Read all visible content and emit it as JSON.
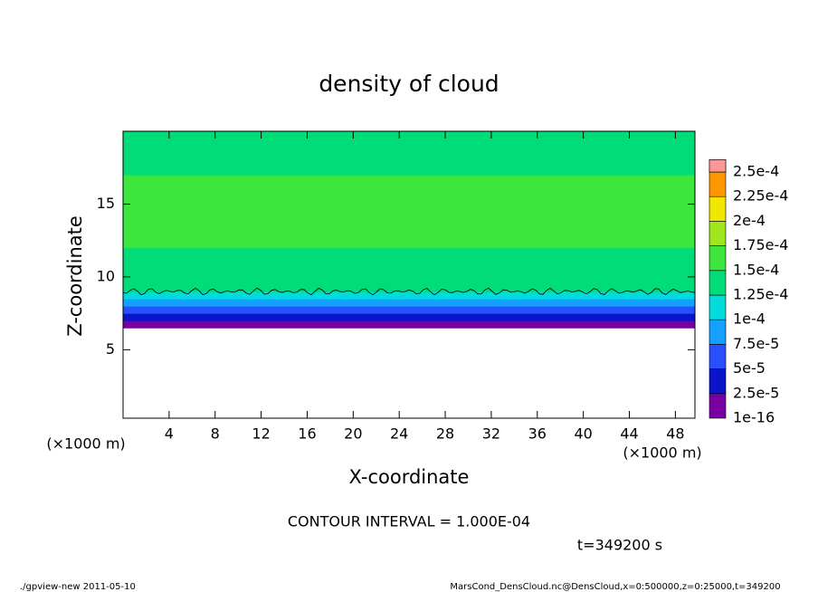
{
  "chart_data": {
    "type": "heatmap",
    "title": "density of cloud",
    "xlabel": "X-coordinate",
    "ylabel": "Z-coordinate",
    "xunit": "(×1000 m)",
    "yunit": "(×1000 m)",
    "xlim": [
      0,
      49.7
    ],
    "ylim": [
      0.3,
      20
    ],
    "xticks": [
      4,
      8,
      12,
      16,
      20,
      24,
      28,
      32,
      36,
      40,
      44,
      48
    ],
    "yticks": [
      5,
      10,
      15
    ],
    "z": [
      6.5,
      7.0,
      7.5,
      8.0,
      8.5,
      9.0,
      10.0,
      12.0,
      17.0,
      19.0
    ],
    "values": [
      1e-16,
      3e-05,
      6e-05,
      8.5e-05,
      0.00011,
      0.00013,
      0.00014,
      0.000155,
      0.000145,
      0.000135
    ],
    "contour_z": 9.0,
    "colorbar": {
      "ticks": [
        {
          "value": 1e-16,
          "label": "1e-16"
        },
        {
          "value": 2.5e-05,
          "label": "2.5e-5"
        },
        {
          "value": 5e-05,
          "label": "5e-5"
        },
        {
          "value": 7.5e-05,
          "label": "7.5e-5"
        },
        {
          "value": 0.0001,
          "label": "1e-4"
        },
        {
          "value": 0.000125,
          "label": "1.25e-4"
        },
        {
          "value": 0.00015,
          "label": "1.5e-4"
        },
        {
          "value": 0.000175,
          "label": "1.75e-4"
        },
        {
          "value": 0.0002,
          "label": "2e-4"
        },
        {
          "value": 0.000225,
          "label": "2.25e-4"
        },
        {
          "value": 0.00025,
          "label": "2.5e-4"
        }
      ],
      "colors": [
        "#7800a0",
        "#0a14c8",
        "#2850ff",
        "#14a0ff",
        "#00dcdc",
        "#00dc78",
        "#3ce63c",
        "#a0e61e",
        "#f0e600",
        "#ff9600",
        "#ff3c1e",
        "#ff9696"
      ]
    },
    "contour_interval": "CONTOUR INTERVAL = 1.000E-04",
    "time": "t=349200 s",
    "footer_left": "./gpview-new   2011-05-10",
    "footer_right": "MarsCond_DensCloud.nc@DensCloud,x=0:500000,z=0:25000,t=349200"
  }
}
